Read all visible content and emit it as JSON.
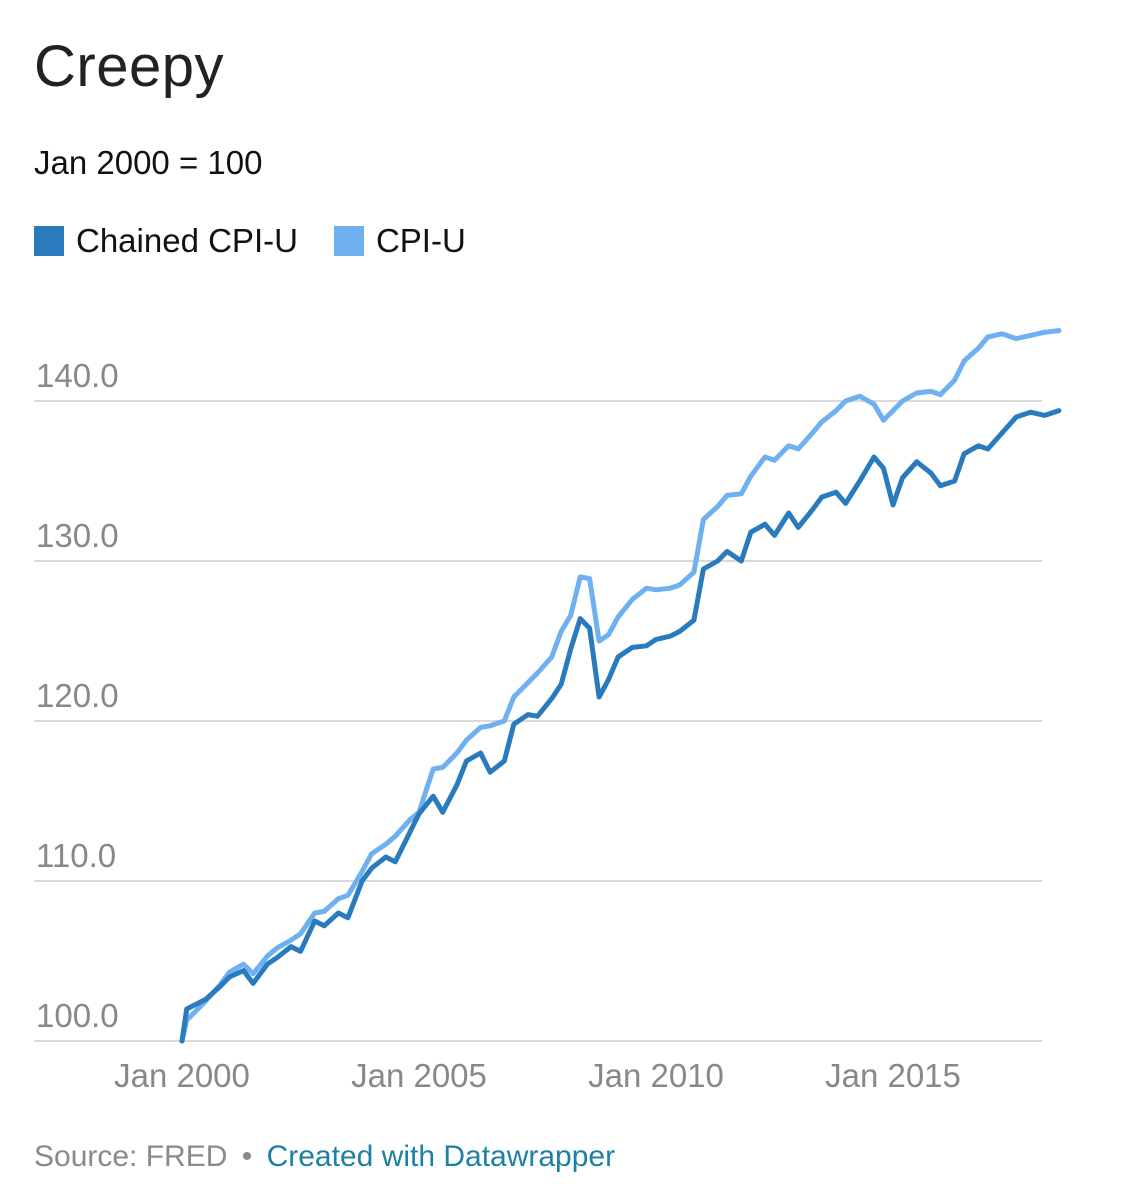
{
  "header": {
    "title": "Creepy",
    "subtitle": "Jan 2000 = 100"
  },
  "footer": {
    "source": "Source: FRED",
    "separator": "•",
    "credit": "Created with Datawrapper"
  },
  "colors": {
    "chained": "#2a7bbd",
    "cpiu": "#6eb0f0",
    "grid": "#d9d9d9",
    "tick": "#888888"
  },
  "chart_data": {
    "type": "line",
    "title": "Creepy",
    "subtitle": "Jan 2000 = 100",
    "xlabel": "",
    "ylabel": "",
    "ylim": [
      100,
      145
    ],
    "xlim": [
      2000,
      2018.8
    ],
    "yticks": [
      100,
      110,
      120,
      130,
      140
    ],
    "ytick_labels": [
      "100.0",
      "110.0",
      "120.0",
      "130.0",
      "140.0"
    ],
    "xticks": [
      2000,
      2005,
      2010,
      2015
    ],
    "xtick_labels": [
      "Jan 2000",
      "Jan 2005",
      "Jan 2010",
      "Jan 2015"
    ],
    "grid": true,
    "legend_position": "top-left",
    "series": [
      {
        "name": "Chained CPI-U",
        "color": "#2a7bbd",
        "x": [
          2000.0,
          2000.1,
          2000.3,
          2000.5,
          2000.8,
          2001.0,
          2001.3,
          2001.5,
          2001.8,
          2002.0,
          2002.3,
          2002.5,
          2002.8,
          2003.0,
          2003.3,
          2003.5,
          2003.8,
          2004.0,
          2004.3,
          2004.5,
          2004.8,
          2005.0,
          2005.3,
          2005.5,
          2005.8,
          2006.0,
          2006.3,
          2006.5,
          2006.8,
          2007.0,
          2007.3,
          2007.5,
          2007.8,
          2008.0,
          2008.2,
          2008.4,
          2008.6,
          2008.8,
          2009.0,
          2009.2,
          2009.5,
          2009.8,
          2010.0,
          2010.3,
          2010.5,
          2010.8,
          2011.0,
          2011.3,
          2011.5,
          2011.8,
          2012.0,
          2012.3,
          2012.5,
          2012.8,
          2013.0,
          2013.3,
          2013.5,
          2013.8,
          2014.0,
          2014.3,
          2014.6,
          2014.8,
          2015.0,
          2015.2,
          2015.5,
          2015.8,
          2016.0,
          2016.3,
          2016.5,
          2016.8,
          2017.0,
          2017.3,
          2017.6,
          2017.9,
          2018.2,
          2018.5
        ],
        "values": [
          100.0,
          102.0,
          102.3,
          102.6,
          103.4,
          104.0,
          104.4,
          103.6,
          104.8,
          105.2,
          105.9,
          105.6,
          107.5,
          107.2,
          108.0,
          107.7,
          110.0,
          110.8,
          111.5,
          111.2,
          113.0,
          114.2,
          115.3,
          114.3,
          116.0,
          117.5,
          118.0,
          116.8,
          117.5,
          119.8,
          120.4,
          120.3,
          121.4,
          122.3,
          124.5,
          126.4,
          125.8,
          121.5,
          122.6,
          124.0,
          124.6,
          124.7,
          125.1,
          125.3,
          125.6,
          126.3,
          129.5,
          130.0,
          130.6,
          130.0,
          131.8,
          132.3,
          131.6,
          133.0,
          132.1,
          133.2,
          134.0,
          134.3,
          133.6,
          135.0,
          136.5,
          135.8,
          133.5,
          135.2,
          136.2,
          135.5,
          134.7,
          135.0,
          136.7,
          137.2,
          137.0,
          138.0,
          139.0,
          139.3,
          139.1,
          139.4
        ]
      },
      {
        "name": "CPI-U",
        "color": "#6eb0f0",
        "x": [
          2000.0,
          2000.1,
          2000.3,
          2000.5,
          2000.8,
          2001.0,
          2001.3,
          2001.5,
          2001.8,
          2002.0,
          2002.3,
          2002.5,
          2002.8,
          2003.0,
          2003.3,
          2003.5,
          2003.8,
          2004.0,
          2004.3,
          2004.5,
          2004.8,
          2005.0,
          2005.3,
          2005.5,
          2005.8,
          2006.0,
          2006.3,
          2006.5,
          2006.8,
          2007.0,
          2007.3,
          2007.5,
          2007.8,
          2008.0,
          2008.2,
          2008.4,
          2008.6,
          2008.8,
          2009.0,
          2009.2,
          2009.5,
          2009.8,
          2010.0,
          2010.3,
          2010.5,
          2010.8,
          2011.0,
          2011.3,
          2011.5,
          2011.8,
          2012.0,
          2012.3,
          2012.5,
          2012.8,
          2013.0,
          2013.3,
          2013.5,
          2013.8,
          2014.0,
          2014.3,
          2014.6,
          2014.8,
          2015.0,
          2015.2,
          2015.5,
          2015.8,
          2016.0,
          2016.3,
          2016.5,
          2016.8,
          2017.0,
          2017.3,
          2017.6,
          2017.9,
          2018.2,
          2018.5
        ],
        "values": [
          100.0,
          101.3,
          101.9,
          102.5,
          103.5,
          104.3,
          104.8,
          104.2,
          105.3,
          105.8,
          106.3,
          106.7,
          108.0,
          108.1,
          108.9,
          109.1,
          110.6,
          111.7,
          112.3,
          112.8,
          113.8,
          114.3,
          117.0,
          117.1,
          118.0,
          118.8,
          119.6,
          119.7,
          120.0,
          121.5,
          122.4,
          123.0,
          124.0,
          125.6,
          126.6,
          129.0,
          128.9,
          125.0,
          125.4,
          126.5,
          127.6,
          128.3,
          128.2,
          128.3,
          128.5,
          129.3,
          132.6,
          133.4,
          134.1,
          134.2,
          135.3,
          136.5,
          136.3,
          137.2,
          137.0,
          138.0,
          138.7,
          139.4,
          140.0,
          140.3,
          139.8,
          138.8,
          139.4,
          140.0,
          140.5,
          140.6,
          140.4,
          141.3,
          142.5,
          143.3,
          144.0,
          144.2,
          143.9,
          144.1,
          144.3,
          144.4
        ]
      }
    ]
  }
}
